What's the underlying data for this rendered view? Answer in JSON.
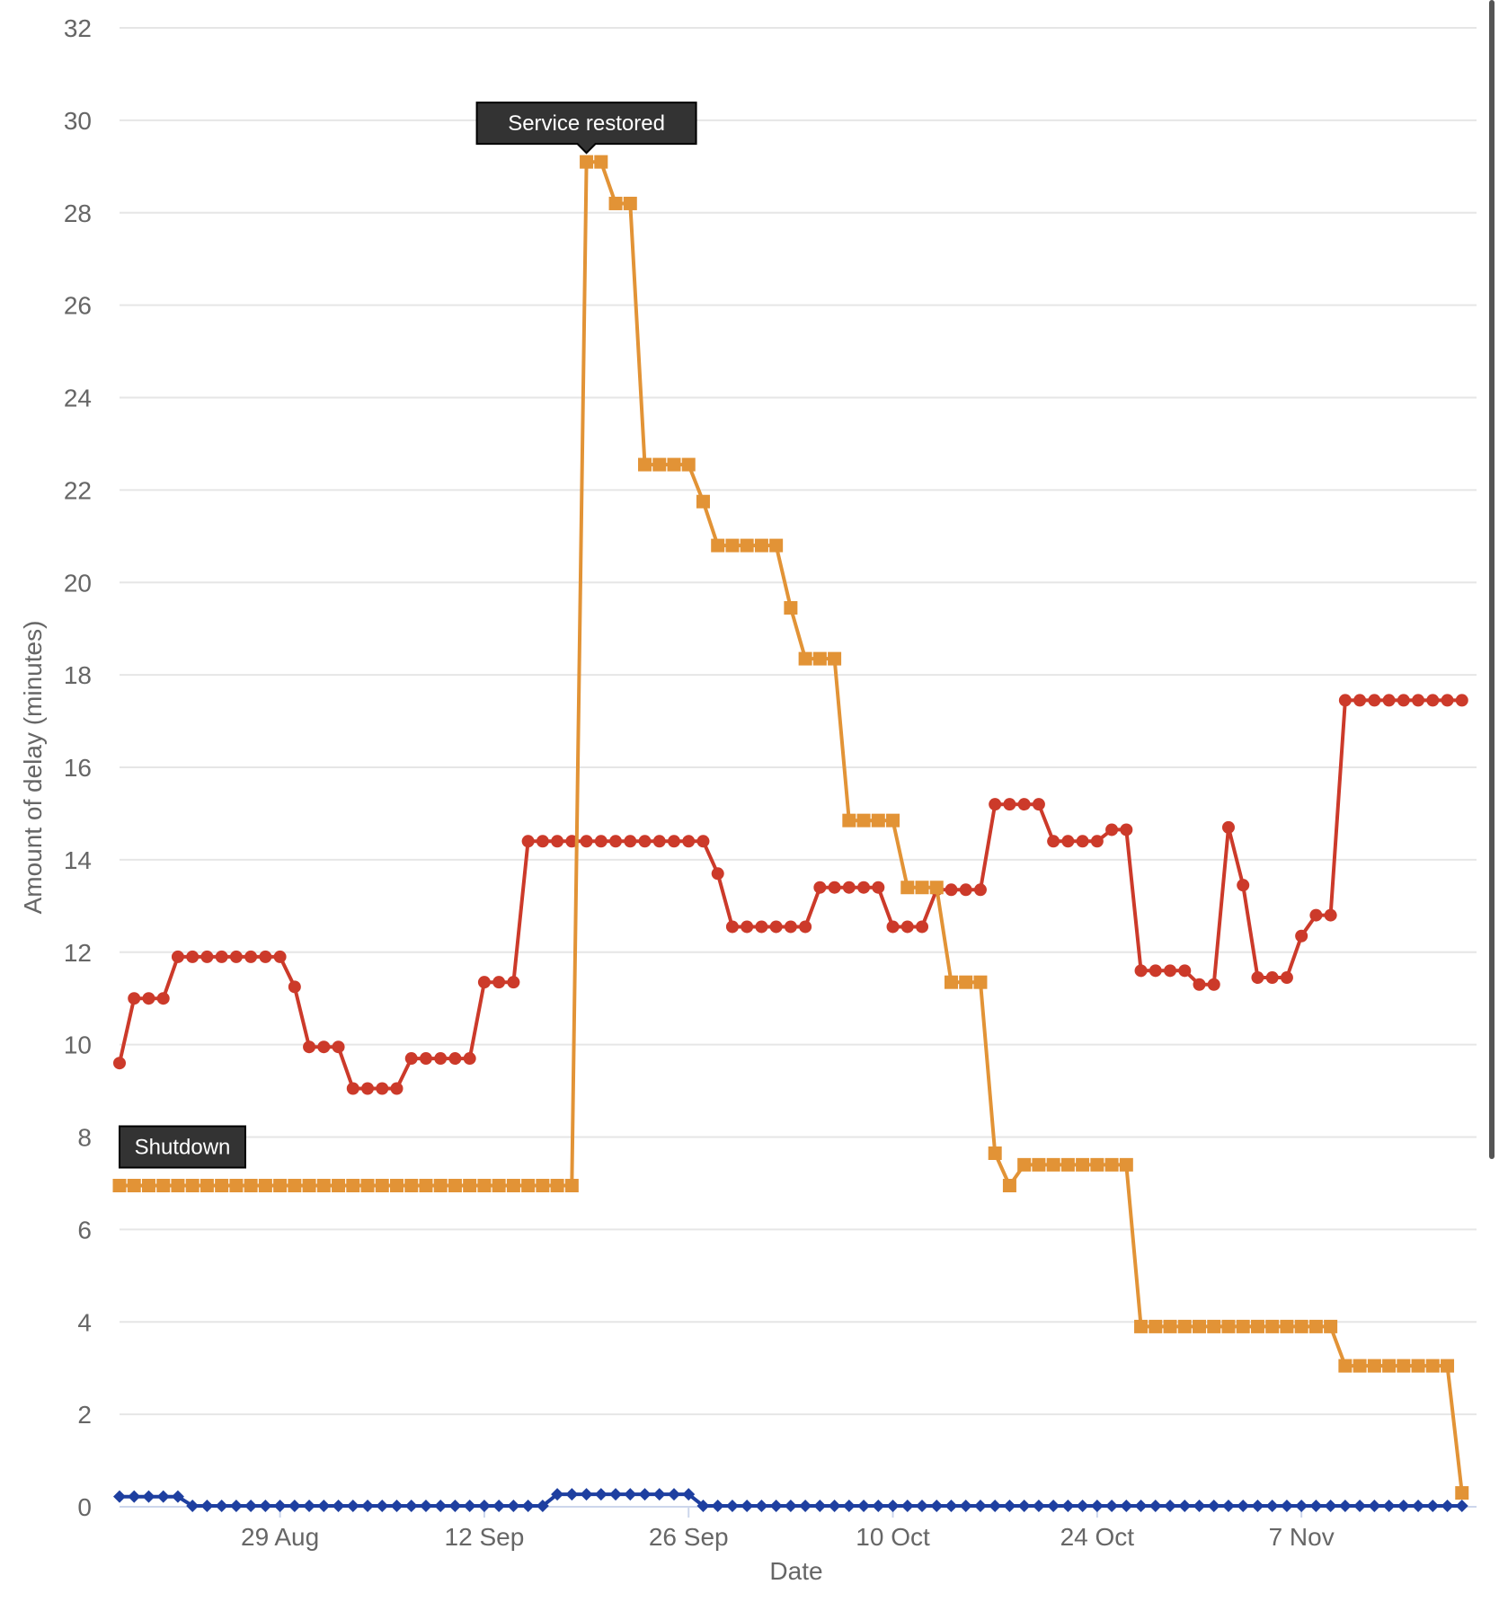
{
  "chart_data": {
    "type": "line",
    "xlabel": "Date",
    "ylabel": "Amount of delay (minutes)",
    "ylim": [
      0,
      32
    ],
    "yticks": [
      0,
      2,
      4,
      6,
      8,
      10,
      12,
      14,
      16,
      18,
      20,
      22,
      24,
      26,
      28,
      30,
      32
    ],
    "xlim": [
      "2024-08-18",
      "2024-11-19"
    ],
    "xticks": [
      {
        "date": "2024-08-29",
        "label": "29 Aug"
      },
      {
        "date": "2024-09-12",
        "label": "12 Sep"
      },
      {
        "date": "2024-09-26",
        "label": "26 Sep"
      },
      {
        "date": "2024-10-10",
        "label": "10 Oct"
      },
      {
        "date": "2024-10-24",
        "label": "24 Oct"
      },
      {
        "date": "2024-11-07",
        "label": "7 Nov"
      }
    ],
    "grid": true,
    "start_date": "2024-08-18",
    "series": [
      {
        "color": "#cc3a2a",
        "marker": "circle",
        "values": [
          9.6,
          11.0,
          11.0,
          11.0,
          11.9,
          11.9,
          11.9,
          11.9,
          11.9,
          11.9,
          11.9,
          11.9,
          11.25,
          9.95,
          9.95,
          9.95,
          9.05,
          9.05,
          9.05,
          9.05,
          9.7,
          9.7,
          9.7,
          9.7,
          9.7,
          11.35,
          11.35,
          11.35,
          14.4,
          14.4,
          14.4,
          14.4,
          14.4,
          14.4,
          14.4,
          14.4,
          14.4,
          14.4,
          14.4,
          14.4,
          14.4,
          13.7,
          12.55,
          12.55,
          12.55,
          12.55,
          12.55,
          12.55,
          13.4,
          13.4,
          13.4,
          13.4,
          13.4,
          12.55,
          12.55,
          12.55,
          13.35,
          13.35,
          13.35,
          13.35,
          15.2,
          15.2,
          15.2,
          15.2,
          14.4,
          14.4,
          14.4,
          14.4,
          14.65,
          14.65,
          11.6,
          11.6,
          11.6,
          11.6,
          11.3,
          11.3,
          14.7,
          13.45,
          11.45,
          11.45,
          11.45,
          12.35,
          12.8,
          12.8,
          17.45,
          17.45,
          17.45,
          17.45,
          17.45,
          17.45,
          17.45,
          17.45,
          17.45
        ]
      },
      {
        "color": "#e29336",
        "marker": "square",
        "values": [
          6.95,
          6.95,
          6.95,
          6.95,
          6.95,
          6.95,
          6.95,
          6.95,
          6.95,
          6.95,
          6.95,
          6.95,
          6.95,
          6.95,
          6.95,
          6.95,
          6.95,
          6.95,
          6.95,
          6.95,
          6.95,
          6.95,
          6.95,
          6.95,
          6.95,
          6.95,
          6.95,
          6.95,
          6.95,
          6.95,
          6.95,
          6.95,
          29.1,
          29.1,
          28.2,
          28.2,
          22.55,
          22.55,
          22.55,
          22.55,
          21.75,
          20.8,
          20.8,
          20.8,
          20.8,
          20.8,
          19.45,
          18.35,
          18.35,
          18.35,
          14.85,
          14.85,
          14.85,
          14.85,
          13.4,
          13.4,
          13.4,
          11.35,
          11.35,
          11.35,
          7.65,
          6.95,
          7.4,
          7.4,
          7.4,
          7.4,
          7.4,
          7.4,
          7.4,
          7.4,
          3.9,
          3.9,
          3.9,
          3.9,
          3.9,
          3.9,
          3.9,
          3.9,
          3.9,
          3.9,
          3.9,
          3.9,
          3.9,
          3.9,
          3.05,
          3.05,
          3.05,
          3.05,
          3.05,
          3.05,
          3.05,
          3.05,
          0.3
        ]
      },
      {
        "color": "#1e3fa0",
        "marker": "diamond",
        "values": [
          0.22,
          0.22,
          0.22,
          0.22,
          0.22,
          0.02,
          0.02,
          0.02,
          0.02,
          0.02,
          0.02,
          0.02,
          0.02,
          0.02,
          0.02,
          0.02,
          0.02,
          0.02,
          0.02,
          0.02,
          0.02,
          0.02,
          0.02,
          0.02,
          0.02,
          0.02,
          0.02,
          0.02,
          0.02,
          0.02,
          0.27,
          0.27,
          0.27,
          0.27,
          0.27,
          0.27,
          0.27,
          0.27,
          0.27,
          0.27,
          0.02,
          0.02,
          0.02,
          0.02,
          0.02,
          0.02,
          0.02,
          0.02,
          0.02,
          0.02,
          0.02,
          0.02,
          0.02,
          0.02,
          0.02,
          0.02,
          0.02,
          0.02,
          0.02,
          0.02,
          0.02,
          0.02,
          0.02,
          0.02,
          0.02,
          0.02,
          0.02,
          0.02,
          0.02,
          0.02,
          0.02,
          0.02,
          0.02,
          0.02,
          0.02,
          0.02,
          0.02,
          0.02,
          0.02,
          0.02,
          0.02,
          0.02,
          0.02,
          0.02,
          0.02,
          0.02,
          0.02,
          0.02,
          0.02,
          0.02,
          0.02,
          0.02,
          0.02
        ]
      }
    ],
    "annotations": [
      {
        "text": "Shutdown",
        "date": "2024-08-18",
        "y": 6.95
      },
      {
        "text": "Service restored",
        "date": "2024-09-19",
        "y": 29.1
      }
    ]
  }
}
